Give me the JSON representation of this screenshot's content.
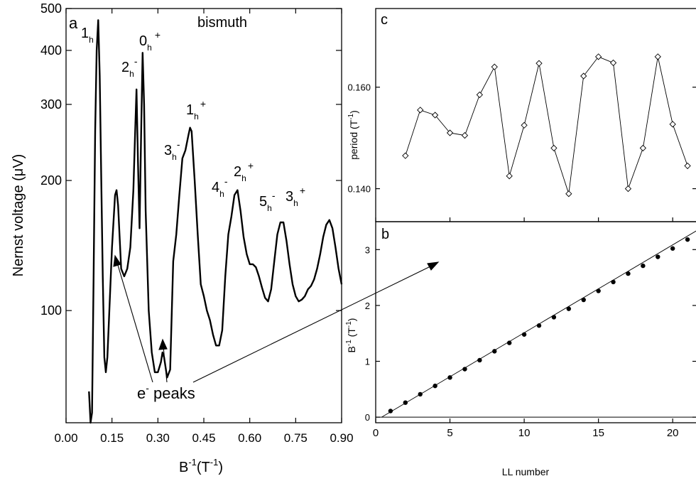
{
  "chart_data": [
    {
      "panel": "a",
      "type": "line",
      "title": "bismuth",
      "xlabel_base": "B",
      "xlabel_sup": "-1",
      "xlabel_unit_base": "(T",
      "xlabel_unit_sup": "-1",
      "xlabel_unit_close": ")",
      "ylabel_prefix": "Nernst voltage (",
      "ylabel_mu": "μ",
      "ylabel_suffix": "V)",
      "yscale": "log",
      "xlim": [
        0,
        0.9
      ],
      "ylim": [
        55,
        500
      ],
      "x_ticks": [
        "0.00",
        "0.15",
        "0.30",
        "0.45",
        "0.60",
        "0.75",
        "0.90"
      ],
      "y_ticks": [
        {
          "value": 100,
          "label": "100"
        },
        {
          "value": 200,
          "label": "200"
        },
        {
          "value": 300,
          "label": "300"
        },
        {
          "value": 400,
          "label": "400"
        },
        {
          "value": 500,
          "label": "500"
        }
      ],
      "x": [
        0.075,
        0.08,
        0.085,
        0.09,
        0.095,
        0.1,
        0.105,
        0.11,
        0.115,
        0.12,
        0.125,
        0.13,
        0.135,
        0.14,
        0.15,
        0.16,
        0.165,
        0.17,
        0.18,
        0.19,
        0.2,
        0.21,
        0.22,
        0.225,
        0.23,
        0.235,
        0.24,
        0.245,
        0.25,
        0.255,
        0.26,
        0.27,
        0.28,
        0.29,
        0.3,
        0.31,
        0.315,
        0.32,
        0.33,
        0.34,
        0.35,
        0.36,
        0.37,
        0.38,
        0.39,
        0.4,
        0.405,
        0.41,
        0.42,
        0.43,
        0.44,
        0.45,
        0.46,
        0.47,
        0.48,
        0.49,
        0.5,
        0.51,
        0.52,
        0.53,
        0.54,
        0.55,
        0.56,
        0.57,
        0.58,
        0.59,
        0.6,
        0.61,
        0.62,
        0.63,
        0.64,
        0.65,
        0.66,
        0.67,
        0.68,
        0.69,
        0.7,
        0.71,
        0.72,
        0.73,
        0.74,
        0.75,
        0.76,
        0.77,
        0.78,
        0.79,
        0.8,
        0.81,
        0.82,
        0.83,
        0.84,
        0.85,
        0.86,
        0.87,
        0.88,
        0.89,
        0.9
      ],
      "y": [
        65,
        55,
        58,
        120,
        260,
        400,
        470,
        350,
        200,
        120,
        78,
        72,
        78,
        95,
        140,
        185,
        190,
        175,
        125,
        120,
        125,
        140,
        190,
        250,
        325,
        220,
        155,
        250,
        395,
        300,
        170,
        100,
        80,
        72,
        72,
        76,
        80,
        78,
        70,
        73,
        130,
        150,
        185,
        225,
        235,
        255,
        265,
        260,
        200,
        150,
        115,
        108,
        100,
        95,
        88,
        83,
        83,
        90,
        120,
        150,
        165,
        185,
        190,
        170,
        148,
        135,
        128,
        128,
        126,
        120,
        113,
        107,
        105,
        112,
        130,
        150,
        160,
        160,
        145,
        128,
        115,
        108,
        105,
        106,
        108,
        112,
        114,
        118,
        125,
        135,
        148,
        158,
        162,
        155,
        140,
        125,
        115
      ]
    },
    {
      "panel": "c",
      "type": "line",
      "xlim": [
        0,
        22
      ],
      "ylim": [
        0.1335,
        0.1755
      ],
      "ylabel_base": "period (T",
      "ylabel_sup": "-1",
      "ylabel_close": ")",
      "y_ticks": [
        {
          "value": 0.14,
          "label": "0.140"
        },
        {
          "value": 0.16,
          "label": "0.160"
        }
      ],
      "x": [
        2,
        3,
        4,
        5,
        6,
        7,
        8,
        9,
        10,
        11,
        12,
        13,
        14,
        15,
        16,
        17,
        18,
        19,
        20,
        21
      ],
      "y": [
        0.1465,
        0.1555,
        0.1545,
        0.151,
        0.1505,
        0.1585,
        0.164,
        0.1425,
        0.1525,
        0.1647,
        0.148,
        0.139,
        0.1622,
        0.166,
        0.1648,
        0.14,
        0.148,
        0.166,
        0.1527,
        0.1445
      ]
    },
    {
      "panel": "b",
      "type": "scatter",
      "xlabel": "LL number",
      "ylabel_base": "B",
      "ylabel_sup1": "-1",
      "ylabel_mid": " (T",
      "ylabel_sup2": "-1",
      "ylabel_close": ")",
      "xlim": [
        0,
        22
      ],
      "ylim": [
        -0.1,
        3.5
      ],
      "x_ticks": [
        "0",
        "5",
        "10",
        "15",
        "20"
      ],
      "y_ticks": [
        "0",
        "1",
        "2",
        "3"
      ],
      "x": [
        1,
        2,
        3,
        4,
        5,
        6,
        7,
        8,
        9,
        10,
        11,
        12,
        13,
        14,
        15,
        16,
        17,
        18,
        19,
        20,
        21
      ],
      "y": [
        0.11,
        0.26,
        0.41,
        0.56,
        0.71,
        0.86,
        1.02,
        1.18,
        1.33,
        1.48,
        1.64,
        1.79,
        1.94,
        2.1,
        2.26,
        2.42,
        2.57,
        2.71,
        2.87,
        3.02,
        3.18
      ],
      "fit_line": {
        "x": [
          0.4,
          22
        ],
        "y": [
          0.0,
          3.4
        ]
      }
    }
  ],
  "annotations": {
    "panel_a_letter": "a",
    "panel_b_letter": "b",
    "panel_c_letter": "c",
    "peak_labels": [
      {
        "base": "1",
        "sub": "h",
        "sup": "",
        "x": 0.11,
        "y": 470
      },
      {
        "base": "2",
        "sub": "h",
        "sup": "-",
        "x": 0.23,
        "y": 325
      },
      {
        "base": "0",
        "sub": "h",
        "sup": "+",
        "x": 0.25,
        "y": 395
      },
      {
        "base": "1",
        "sub": "h",
        "sup": "+",
        "x": 0.4,
        "y": 265
      },
      {
        "base": "3",
        "sub": "h",
        "sup": "-",
        "x": 0.39,
        "y": 235
      },
      {
        "base": "2",
        "sub": "h",
        "sup": "+",
        "x": 0.56,
        "y": 190
      },
      {
        "base": "4",
        "sub": "h",
        "sup": "-",
        "x": 0.54,
        "y": 165
      },
      {
        "base": "5",
        "sub": "h",
        "sup": "-",
        "x": 0.7,
        "y": 160
      },
      {
        "base": "3",
        "sub": "h",
        "sup": "+",
        "x": 0.71,
        "y": 160
      }
    ],
    "epeaks_base": "e",
    "epeaks_sup": "-",
    "epeaks_text": " peaks"
  }
}
